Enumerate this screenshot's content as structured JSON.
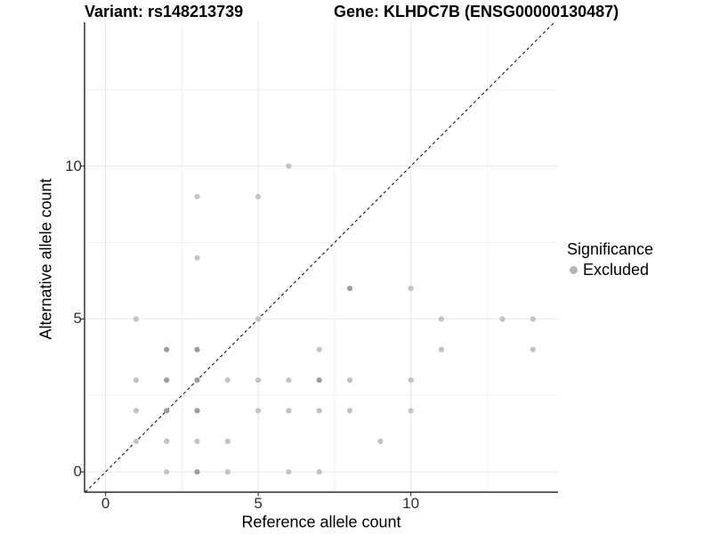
{
  "titles": {
    "left": "Variant: rs148213739",
    "right": "Gene: KLHDC7B (ENSG00000130487)"
  },
  "axes": {
    "x_label": "Reference allele count",
    "y_label": "Alternative allele count"
  },
  "legend": {
    "title": "Significance",
    "items": [
      {
        "label": "Excluded",
        "color": "#b5b5b5"
      }
    ]
  },
  "chart_data": {
    "type": "scatter",
    "title": "Variant: rs148213739 — Gene: KLHDC7B (ENSG00000130487)",
    "xlabel": "Reference allele count",
    "ylabel": "Alternative allele count",
    "xlim": [
      -0.69,
      14.82
    ],
    "ylim": [
      -0.66,
      14.7
    ],
    "grid": "on",
    "legend_position": "right",
    "x_ticks": [
      {
        "value": 0,
        "label": "0"
      },
      {
        "value": 5,
        "label": "5"
      },
      {
        "value": 10,
        "label": "10"
      }
    ],
    "y_ticks": [
      {
        "value": 0,
        "label": "0"
      },
      {
        "value": 5,
        "label": "5"
      },
      {
        "value": 10,
        "label": "10"
      }
    ],
    "grid_major_x": [
      0,
      5,
      10
    ],
    "grid_minor_x": [
      2.5,
      7.5,
      12.5
    ],
    "grid_major_y": [
      0,
      5,
      10
    ],
    "grid_minor_y": [
      2.5,
      7.5,
      12.5
    ],
    "identity_line": {
      "equation": "y = x",
      "style": "dashed",
      "color": "#1a1a1a"
    },
    "series": [
      {
        "name": "Excluded",
        "color_light": "#c3c3c3",
        "color_dark": "#9d9d9d",
        "point_radius": 3.1,
        "points_format": "[reference_allele_count, alternative_allele_count, overplot_level]",
        "points": [
          [
            6,
            10,
            1
          ],
          [
            3,
            9,
            1
          ],
          [
            5,
            9,
            1
          ],
          [
            3,
            7,
            1
          ],
          [
            8,
            6,
            2
          ],
          [
            10,
            6,
            1
          ],
          [
            1,
            5,
            1
          ],
          [
            5,
            5,
            1
          ],
          [
            11,
            5,
            1
          ],
          [
            13,
            5,
            1
          ],
          [
            14,
            5,
            1
          ],
          [
            2,
            4,
            2
          ],
          [
            3,
            4,
            2
          ],
          [
            7,
            4,
            1
          ],
          [
            11,
            4,
            1
          ],
          [
            14,
            4,
            1
          ],
          [
            1,
            3,
            1
          ],
          [
            2,
            3,
            2
          ],
          [
            3,
            3,
            2
          ],
          [
            4,
            3,
            1
          ],
          [
            5,
            3,
            1
          ],
          [
            6,
            3,
            1
          ],
          [
            7,
            3,
            2
          ],
          [
            8,
            3,
            1
          ],
          [
            10,
            3,
            1
          ],
          [
            1,
            2,
            1
          ],
          [
            2,
            2,
            2
          ],
          [
            3,
            2,
            2
          ],
          [
            5,
            2,
            1
          ],
          [
            6,
            2,
            1
          ],
          [
            7,
            2,
            1
          ],
          [
            8,
            2,
            1
          ],
          [
            10,
            2,
            1
          ],
          [
            1,
            1,
            1
          ],
          [
            2,
            1,
            1
          ],
          [
            3,
            1,
            1
          ],
          [
            4,
            1,
            1
          ],
          [
            9,
            1,
            1
          ],
          [
            2,
            0,
            1
          ],
          [
            3,
            0,
            2
          ],
          [
            4,
            0,
            1
          ],
          [
            6,
            0,
            1
          ],
          [
            7,
            0,
            1
          ]
        ]
      }
    ]
  }
}
